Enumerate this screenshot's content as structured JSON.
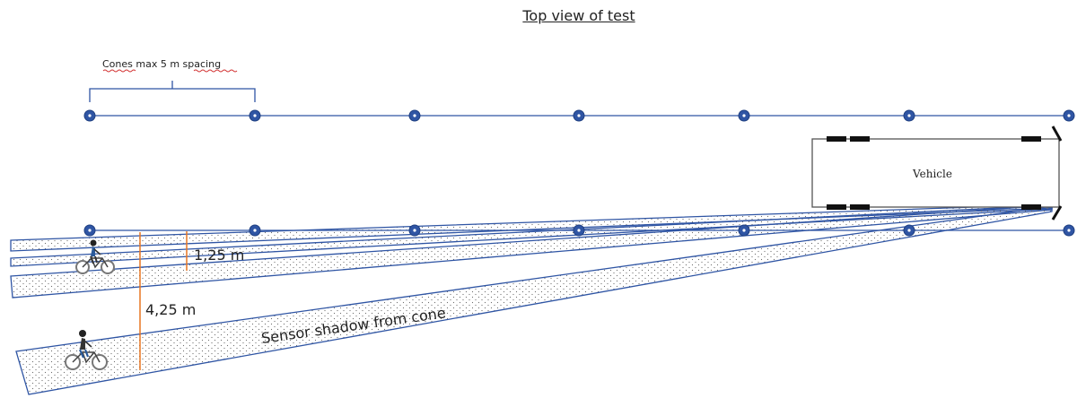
{
  "title": "Top view of test",
  "cone_spacing_label": "Cones max 5 m spacing",
  "vehicle_label": "Vehicle",
  "near_distance_label": "1,25 m",
  "far_distance_label": "4,25 m",
  "shadow_label": "Sensor shadow from cone",
  "colors": {
    "line": "#2f55a4",
    "cone": "#2f55a4",
    "measure": "#e87722",
    "text": "#222222",
    "squiggle": "#d23030"
  }
}
